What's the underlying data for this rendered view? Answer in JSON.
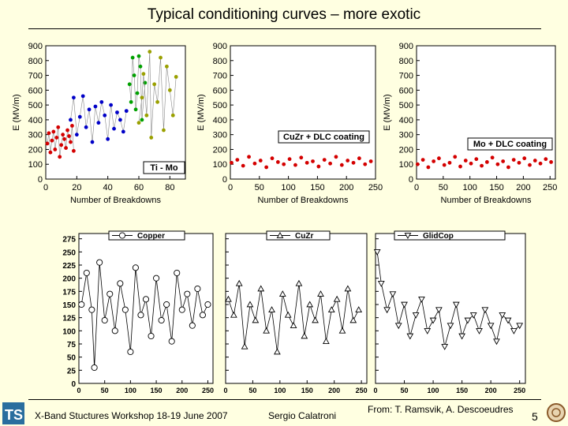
{
  "title": "Typical conditioning curves – more exotic",
  "footer": {
    "workshop": "X-Band Stuctures Workshop 18-19 June 2007",
    "author": "Sergio Calatroni",
    "source": "From: T. Ramsvik, A. Descoeudres",
    "page": "5"
  },
  "colors": {
    "background": "#ffffe1",
    "red": "#d40000",
    "blue": "#0000c8",
    "green": "#00a000",
    "olive": "#9aa000"
  },
  "chart_data": [
    {
      "type": "scatter",
      "ylabel": "E (MV/m)",
      "xlabel": "Number of Breakdowns",
      "legend": "Ti - Mo",
      "xlim": [
        0,
        90
      ],
      "ylim": [
        0,
        900
      ],
      "xticks": [
        "0",
        "20",
        "40",
        "60",
        "80"
      ],
      "yticks": [
        "0",
        "100",
        "200",
        "300",
        "400",
        "500",
        "600",
        "700",
        "800",
        "900"
      ],
      "series": [
        {
          "color": "red",
          "x": [
            1,
            2,
            3,
            4,
            5,
            6,
            7,
            8,
            9,
            10,
            11,
            12,
            13,
            14,
            15,
            16,
            17,
            18
          ],
          "y": [
            240,
            310,
            180,
            260,
            320,
            200,
            280,
            350,
            150,
            230,
            300,
            270,
            210,
            330,
            290,
            250,
            360,
            190
          ]
        },
        {
          "color": "blue",
          "x": [
            16,
            18,
            20,
            22,
            24,
            26,
            28,
            30,
            32,
            34,
            36,
            38,
            40,
            42,
            44,
            46,
            48,
            50,
            52
          ],
          "y": [
            400,
            550,
            300,
            420,
            560,
            350,
            470,
            250,
            490,
            380,
            520,
            430,
            270,
            500,
            340,
            450,
            400,
            320,
            460
          ]
        },
        {
          "color": "green",
          "x": [
            54,
            55,
            56,
            57,
            58,
            59,
            60,
            61,
            62,
            64
          ],
          "y": [
            640,
            520,
            820,
            700,
            470,
            580,
            830,
            760,
            400,
            650
          ]
        },
        {
          "color": "olive",
          "x": [
            60,
            62,
            63,
            65,
            67,
            68,
            70,
            72,
            74,
            76,
            78,
            80,
            82,
            84
          ],
          "y": [
            380,
            550,
            710,
            430,
            860,
            280,
            640,
            520,
            820,
            330,
            760,
            600,
            430,
            690
          ]
        }
      ]
    },
    {
      "type": "scatter",
      "ylabel": "E (MV/m)",
      "xlabel": "Number of Breakdowns",
      "legend": "CuZr + DLC coating",
      "xlim": [
        0,
        250
      ],
      "ylim": [
        0,
        900
      ],
      "xticks": [
        "0",
        "50",
        "100",
        "150",
        "200",
        "250"
      ],
      "yticks": [
        "0",
        "100",
        "200",
        "300",
        "400",
        "500",
        "600",
        "700",
        "800",
        "900"
      ],
      "series": [
        {
          "color": "red",
          "x": [
            2,
            12,
            22,
            32,
            42,
            52,
            62,
            72,
            82,
            92,
            102,
            112,
            122,
            132,
            142,
            152,
            162,
            172,
            182,
            192,
            202,
            212,
            222,
            232,
            242
          ],
          "y": [
            110,
            130,
            90,
            150,
            105,
            125,
            80,
            140,
            115,
            100,
            135,
            95,
            145,
            110,
            120,
            85,
            130,
            105,
            150,
            95,
            125,
            110,
            140,
            100,
            120
          ]
        }
      ]
    },
    {
      "type": "scatter",
      "ylabel": "E (MV/m)",
      "xlabel": "Number of Breakdowns",
      "legend": "Mo + DLC coating",
      "xlim": [
        0,
        260
      ],
      "ylim": [
        0,
        900
      ],
      "xticks": [
        "0",
        "50",
        "100",
        "150",
        "200",
        "250"
      ],
      "yticks": [
        "0",
        "100",
        "200",
        "300",
        "400",
        "500",
        "600",
        "700",
        "800",
        "900"
      ],
      "series": [
        {
          "color": "red",
          "x": [
            2,
            12,
            22,
            32,
            42,
            52,
            62,
            72,
            82,
            92,
            102,
            112,
            122,
            132,
            142,
            152,
            162,
            172,
            182,
            192,
            202,
            212,
            222,
            232,
            242,
            252
          ],
          "y": [
            100,
            130,
            80,
            120,
            140,
            95,
            110,
            150,
            85,
            125,
            105,
            135,
            90,
            115,
            145,
            100,
            120,
            80,
            130,
            110,
            140,
            95,
            125,
            105,
            135,
            115
          ]
        }
      ]
    },
    {
      "type": "line",
      "legend": "Copper",
      "marker": "circle",
      "xlim": [
        0,
        260
      ],
      "ylim": [
        0,
        285
      ],
      "xticks": [
        "0",
        "50",
        "100",
        "150",
        "200",
        "250"
      ],
      "yticks": [
        "0",
        "25",
        "50",
        "75",
        "100",
        "125",
        "150",
        "175",
        "200",
        "225",
        "250",
        "275"
      ],
      "x": [
        5,
        15,
        25,
        30,
        40,
        50,
        60,
        70,
        80,
        90,
        100,
        110,
        120,
        130,
        140,
        150,
        160,
        170,
        180,
        190,
        200,
        210,
        220,
        230,
        240,
        250
      ],
      "y": [
        150,
        210,
        140,
        30,
        230,
        120,
        170,
        100,
        190,
        140,
        60,
        220,
        130,
        160,
        90,
        200,
        120,
        150,
        80,
        210,
        140,
        170,
        110,
        180,
        130,
        150
      ]
    },
    {
      "type": "line",
      "legend": "CuZr",
      "marker": "triangle-up",
      "xlim": [
        0,
        260
      ],
      "ylim": [
        0,
        285
      ],
      "xticks": [
        "0",
        "50",
        "100",
        "150",
        "200",
        "250"
      ],
      "yticks": [
        "0",
        "25",
        "50",
        "75",
        "100",
        "125",
        "150",
        "175",
        "200",
        "225",
        "250",
        "275"
      ],
      "x": [
        5,
        15,
        25,
        35,
        45,
        55,
        65,
        75,
        85,
        95,
        105,
        115,
        125,
        135,
        145,
        155,
        165,
        175,
        185,
        195,
        205,
        215,
        225,
        235,
        245
      ],
      "y": [
        160,
        130,
        190,
        70,
        150,
        120,
        180,
        100,
        140,
        60,
        170,
        130,
        110,
        190,
        90,
        150,
        120,
        170,
        80,
        140,
        160,
        100,
        180,
        120,
        140
      ]
    },
    {
      "type": "line",
      "legend": "GlidCop",
      "marker": "triangle-down",
      "xlim": [
        0,
        260
      ],
      "ylim": [
        0,
        285
      ],
      "xticks": [
        "0",
        "50",
        "100",
        "150",
        "200",
        "250"
      ],
      "yticks": [
        "0",
        "25",
        "50",
        "75",
        "100",
        "125",
        "150",
        "175",
        "200",
        "225",
        "250",
        "275"
      ],
      "x": [
        3,
        10,
        20,
        30,
        40,
        50,
        60,
        70,
        80,
        90,
        100,
        110,
        120,
        130,
        140,
        150,
        160,
        170,
        180,
        190,
        200,
        210,
        220,
        230,
        240,
        250
      ],
      "y": [
        250,
        190,
        140,
        170,
        110,
        150,
        90,
        130,
        160,
        100,
        120,
        140,
        70,
        110,
        150,
        90,
        120,
        130,
        100,
        140,
        110,
        80,
        130,
        120,
        100,
        110
      ]
    }
  ]
}
